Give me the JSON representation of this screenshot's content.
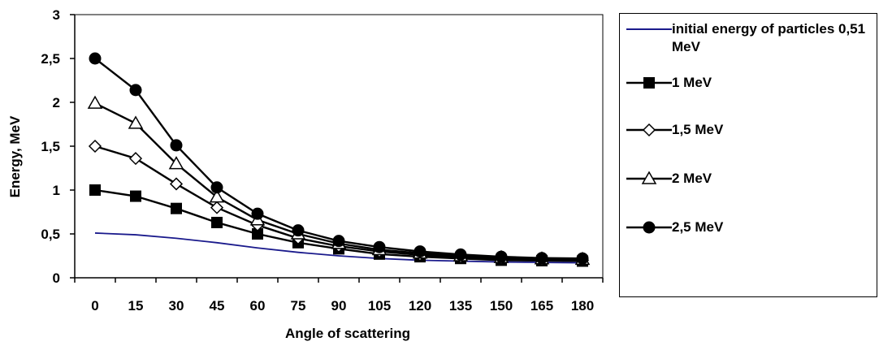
{
  "chart_data": {
    "type": "line",
    "title": "",
    "xlabel": "Angle of scattering",
    "ylabel": "Energy, MeV",
    "x": [
      0,
      15,
      30,
      45,
      60,
      75,
      90,
      105,
      120,
      135,
      150,
      165,
      180
    ],
    "x_tick_labels": [
      "0",
      "15",
      "30",
      "45",
      "60",
      "75",
      "90",
      "105",
      "120",
      "135",
      "150",
      "165",
      "180"
    ],
    "ylim": [
      0,
      3
    ],
    "y_ticks": [
      0,
      0.5,
      1,
      1.5,
      2,
      2.5,
      3
    ],
    "y_tick_labels": [
      "0",
      "0,5",
      "1",
      "1,5",
      "2",
      "2,5",
      "3"
    ],
    "grid": false,
    "legend_position": "right",
    "series": [
      {
        "name": "initial energy of particles 0,51 MeV",
        "marker": "none",
        "color": "#1a1a8c",
        "values": [
          0.51,
          0.49,
          0.45,
          0.4,
          0.34,
          0.29,
          0.25,
          0.22,
          0.2,
          0.19,
          0.18,
          0.175,
          0.17
        ]
      },
      {
        "name": "1 MeV",
        "marker": "filled-square",
        "color": "#000000",
        "values": [
          1.0,
          0.93,
          0.79,
          0.63,
          0.5,
          0.4,
          0.33,
          0.27,
          0.24,
          0.22,
          0.2,
          0.195,
          0.19
        ]
      },
      {
        "name": "1,5 MeV",
        "marker": "open-diamond",
        "color": "#000000",
        "values": [
          1.5,
          1.36,
          1.07,
          0.8,
          0.6,
          0.45,
          0.36,
          0.3,
          0.26,
          0.235,
          0.22,
          0.205,
          0.2
        ]
      },
      {
        "name": "2 MeV",
        "marker": "open-triangle",
        "color": "#000000",
        "values": [
          1.99,
          1.76,
          1.3,
          0.92,
          0.66,
          0.5,
          0.39,
          0.32,
          0.28,
          0.25,
          0.23,
          0.215,
          0.21
        ]
      },
      {
        "name": "2,5 MeV",
        "marker": "filled-circle",
        "color": "#000000",
        "values": [
          2.5,
          2.14,
          1.51,
          1.03,
          0.73,
          0.54,
          0.42,
          0.35,
          0.3,
          0.265,
          0.24,
          0.225,
          0.22
        ]
      }
    ]
  }
}
